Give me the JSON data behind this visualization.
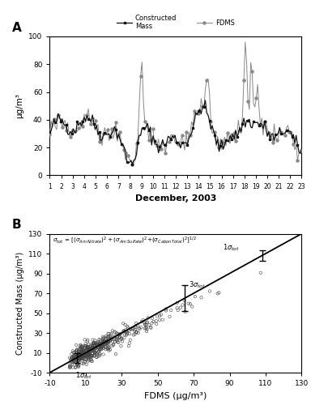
{
  "panel_A": {
    "label": "A",
    "ylabel": "μg/m³",
    "xlabel": "December, 2003",
    "ylim": [
      0,
      100
    ],
    "yticks": [
      0,
      20,
      40,
      60,
      80,
      100
    ],
    "xticks": [
      1,
      2,
      3,
      4,
      5,
      6,
      7,
      8,
      9,
      10,
      11,
      12,
      13,
      14,
      15,
      16,
      17,
      18,
      19,
      20,
      21,
      22,
      23
    ],
    "constructed_color": "#111111",
    "fdms_color": "#888888",
    "legend_constructed": "Constructed\nMass",
    "legend_fdms": "FDMS"
  },
  "panel_B": {
    "label": "B",
    "xlabel": "FDMS (μg/m³)",
    "ylabel": "Constructed Mass (μg/m³)",
    "xlim": [
      -10,
      130
    ],
    "ylim": [
      -10,
      130
    ],
    "xticks": [
      -10,
      10,
      30,
      50,
      70,
      90,
      110,
      130
    ],
    "yticks": [
      -10,
      10,
      30,
      50,
      70,
      90,
      110,
      130
    ],
    "scatter_facecolor": "none",
    "scatter_edgecolor": "#444444",
    "line_color": "#000000"
  },
  "background_color": "#ffffff"
}
